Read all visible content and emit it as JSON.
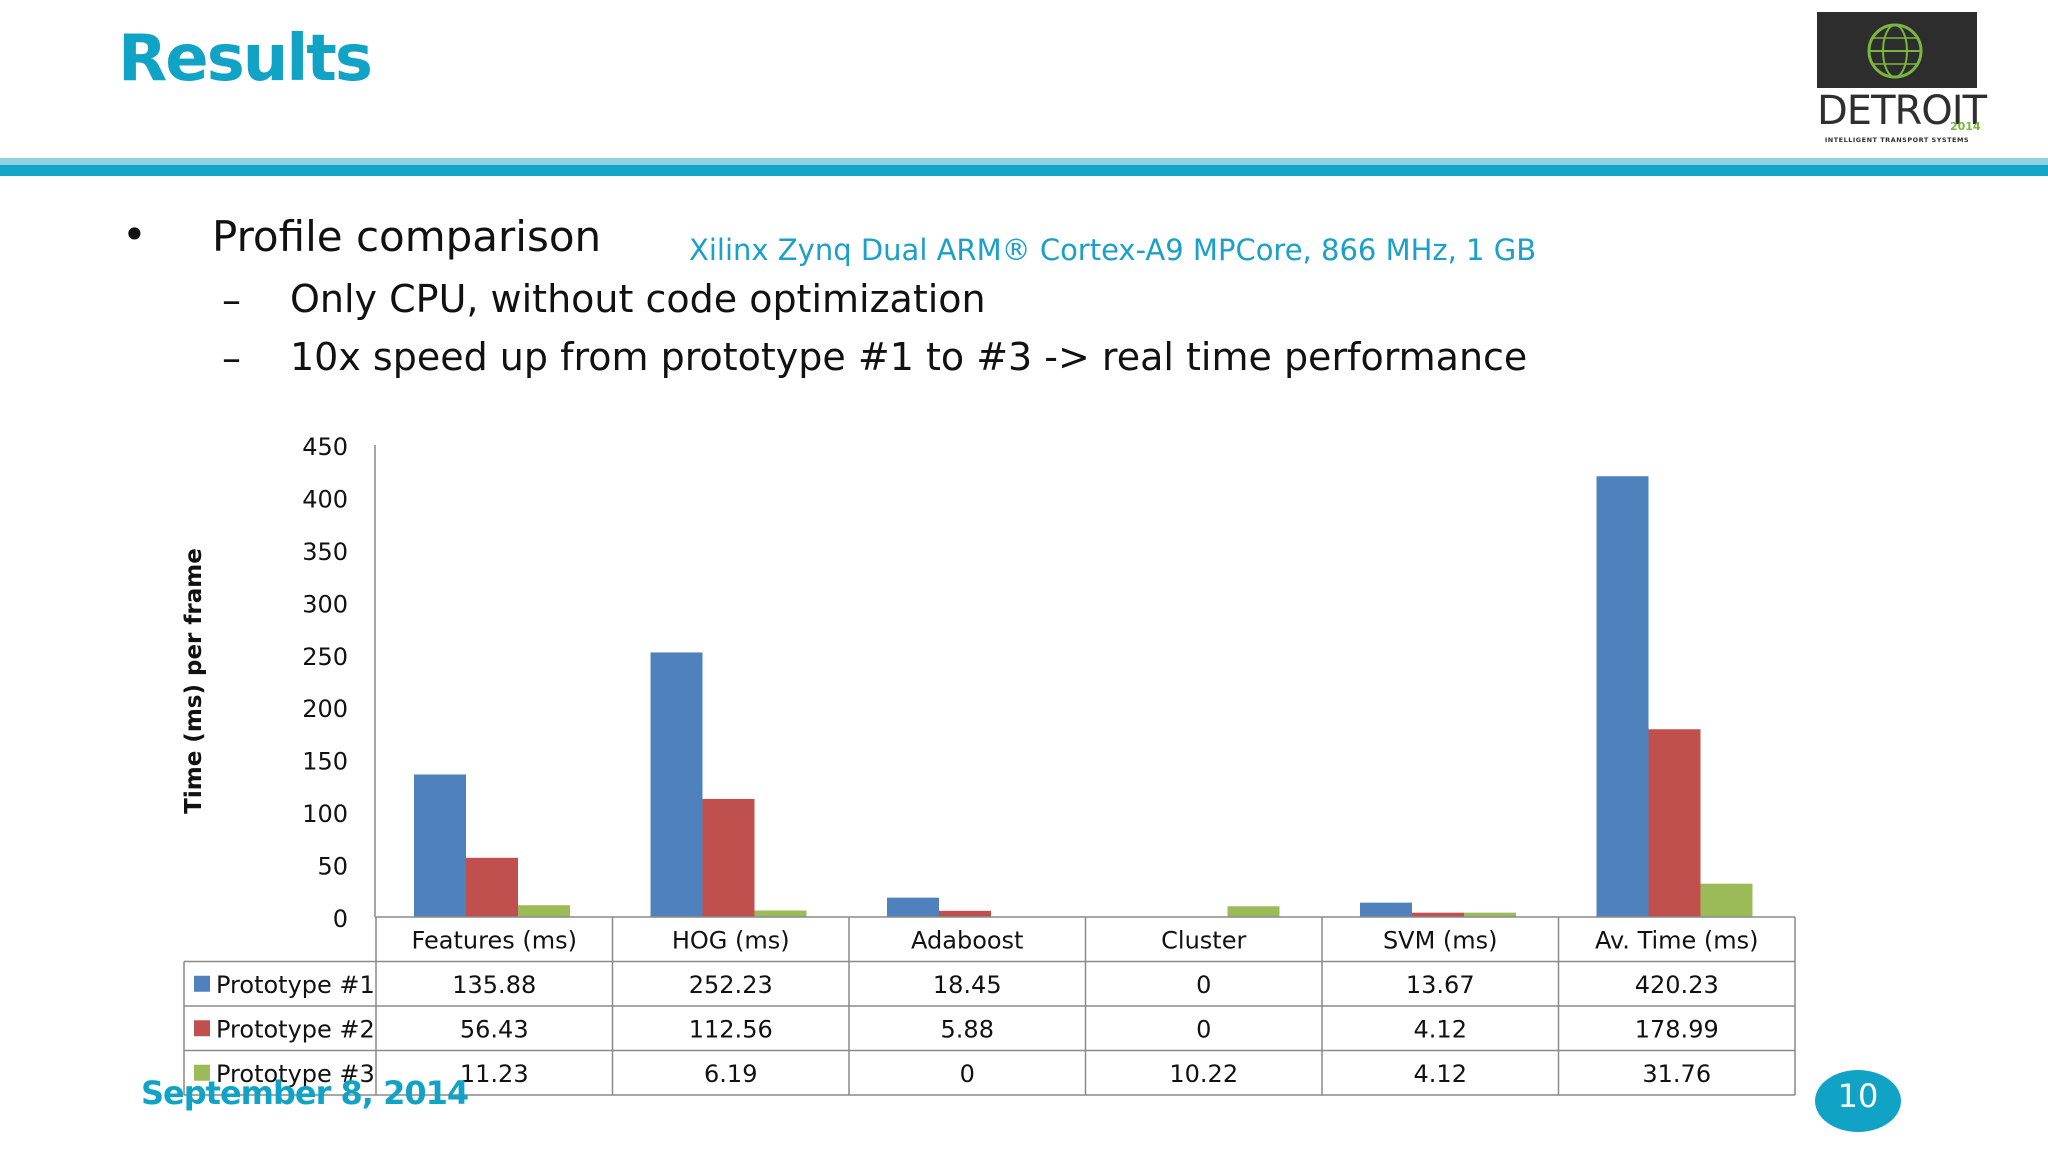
{
  "slide": {
    "title": "Results",
    "bullets": {
      "main": "Profile comparison",
      "sub1": "Only CPU, without code optimization",
      "sub2": "10x speed up from prototype #1 to #3 -> real time performance"
    },
    "bullet_glyph": "•",
    "dash_glyph": "–",
    "hardware_note": "Xilinx Zynq Dual ARM® Cortex-A9 MPCore, 866 MHz, 1 GB",
    "footer_date": "September 8, 2014",
    "page_number": "10",
    "logo": {
      "text": "DETROIT",
      "year": "2014",
      "subtitle": "INTELLIGENT TRANSPORT SYSTEMS",
      "icon": "globe-icon",
      "colors": {
        "dark": "#2d2d2d",
        "green": "#7ab540"
      }
    },
    "accent_color": "#11a3c6"
  },
  "chart_data": {
    "type": "bar",
    "ylabel": "Time (ms) per frame",
    "xlabel": "",
    "ylim": [
      0,
      450
    ],
    "yticks": [
      0,
      50,
      100,
      150,
      200,
      250,
      300,
      350,
      400,
      450
    ],
    "grid": false,
    "legend": "data-table",
    "categories": [
      "Features (ms)",
      "HOG (ms)",
      "Adaboost",
      "Cluster",
      "SVM (ms)",
      "Av. Time (ms)"
    ],
    "series": [
      {
        "name": "Prototype #1",
        "color": "#4f81bd",
        "values": [
          135.88,
          252.23,
          18.45,
          0,
          13.67,
          420.23
        ],
        "labels": [
          "135.88",
          "252.23",
          "18.45",
          "0",
          "13.67",
          "420.23"
        ]
      },
      {
        "name": "Prototype #2",
        "color": "#c0504d",
        "values": [
          56.43,
          112.56,
          5.88,
          0,
          4.12,
          178.99
        ],
        "labels": [
          "56.43",
          "112.56",
          "5.88",
          "0",
          "4.12",
          "178.99"
        ]
      },
      {
        "name": "Prototype #3",
        "color": "#9bbb59",
        "values": [
          11.23,
          6.19,
          0,
          10.22,
          4.12,
          31.76
        ],
        "labels": [
          "11.23",
          "6.19",
          "0",
          "10.22",
          "4.12",
          "31.76"
        ]
      }
    ]
  }
}
